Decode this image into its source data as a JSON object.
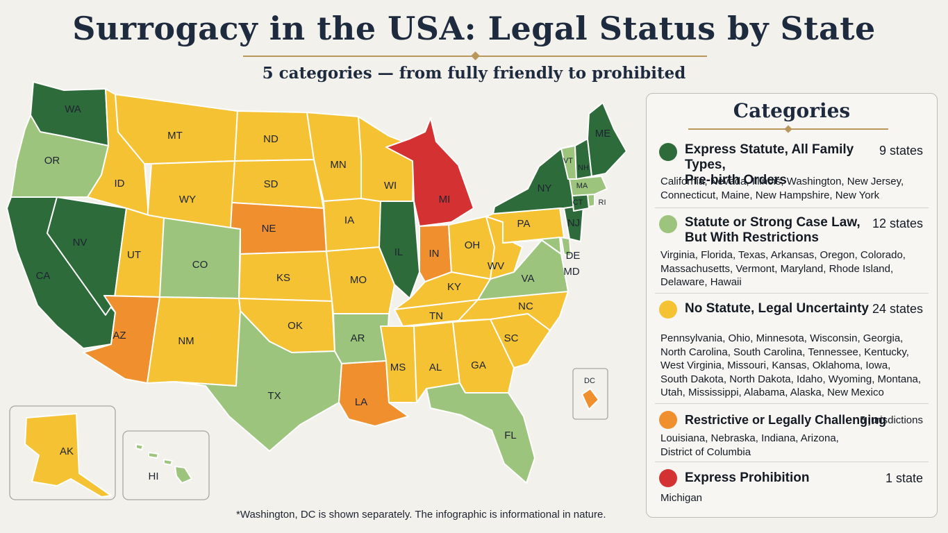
{
  "title": "Surrogacy in the USA: Legal Status by State",
  "subtitle": "5 categories — from fully friendly to prohibited",
  "footnote": "*Washington, DC is shown separately. The infographic is informational in nature.",
  "colors": {
    "express_statute": "#2e6b3a",
    "strong_case_law": "#9cc47c",
    "uncertainty": "#f4c233",
    "restrictive": "#ef8f2e",
    "prohibition": "#d43232"
  },
  "legend": {
    "title": "Categories",
    "categories": [
      {
        "name_line1": "Express Statute, All Family Types,",
        "name_line2": "Pre-birth Orders",
        "count": "9 states",
        "list_line1": "California, Nevada, Illinois, Washington, New Jersey,",
        "list_line2": "Connecticut, Maine, New Hampshire, New York"
      },
      {
        "name_line1": "Statute or Strong Case Law,",
        "name_line2": "But With Restrictions",
        "count": "12 states",
        "list_line1": "Virginia, Florida, Texas, Arkansas, Oregon, Colorado,",
        "list_line2": "Massachusetts, Vermont, Maryland, Rhode Island,",
        "list_line3": "Delaware, Hawaii"
      },
      {
        "name_line1": "No Statute, Legal Uncertainty",
        "count": "24 states",
        "list_line1": "Pennsylvania, Ohio, Minnesota, Wisconsin, Georgia,",
        "list_line2": "North Carolina, South Carolina, Tennessee, Kentucky,",
        "list_line3": "West Virginia, Missouri, Kansas, Oklahoma, Iowa,",
        "list_line4": "South Dakota, North Dakota, Idaho, Wyoming, Montana,",
        "list_line5": "Utah, Mississippi, Alabama, Alaska, New Mexico"
      },
      {
        "name_line1": "Restrictive or Legally Challenging",
        "count": "5 jurisdictions",
        "list_line1": "Louisiana, Nebraska, Indiana, Arizona,",
        "list_line2": "District of Columbia"
      },
      {
        "name_line1": "Express Prohibition",
        "count": "1 state",
        "list_line1": "Michigan"
      }
    ]
  },
  "map": {
    "states": [
      {
        "code": "WA",
        "category": "express_statute"
      },
      {
        "code": "OR",
        "category": "strong_case_law"
      },
      {
        "code": "CA",
        "category": "express_statute"
      },
      {
        "code": "NV",
        "category": "express_statute"
      },
      {
        "code": "ID",
        "category": "uncertainty"
      },
      {
        "code": "MT",
        "category": "uncertainty"
      },
      {
        "code": "WY",
        "category": "uncertainty"
      },
      {
        "code": "UT",
        "category": "uncertainty"
      },
      {
        "code": "AZ",
        "category": "restrictive"
      },
      {
        "code": "CO",
        "category": "strong_case_law"
      },
      {
        "code": "NM",
        "category": "uncertainty"
      },
      {
        "code": "ND",
        "category": "uncertainty"
      },
      {
        "code": "SD",
        "category": "uncertainty"
      },
      {
        "code": "NE",
        "category": "restrictive"
      },
      {
        "code": "KS",
        "category": "uncertainty"
      },
      {
        "code": "OK",
        "category": "uncertainty"
      },
      {
        "code": "TX",
        "category": "strong_case_law"
      },
      {
        "code": "MN",
        "category": "uncertainty"
      },
      {
        "code": "IA",
        "category": "uncertainty"
      },
      {
        "code": "MO",
        "category": "uncertainty"
      },
      {
        "code": "AR",
        "category": "strong_case_law"
      },
      {
        "code": "LA",
        "category": "restrictive"
      },
      {
        "code": "WI",
        "category": "uncertainty"
      },
      {
        "code": "IL",
        "category": "express_statute"
      },
      {
        "code": "MI",
        "category": "prohibition"
      },
      {
        "code": "IN",
        "category": "restrictive"
      },
      {
        "code": "OH",
        "category": "uncertainty"
      },
      {
        "code": "KY",
        "category": "uncertainty"
      },
      {
        "code": "TN",
        "category": "uncertainty"
      },
      {
        "code": "MS",
        "category": "uncertainty"
      },
      {
        "code": "AL",
        "category": "uncertainty"
      },
      {
        "code": "GA",
        "category": "uncertainty"
      },
      {
        "code": "FL",
        "category": "strong_case_law"
      },
      {
        "code": "SC",
        "category": "uncertainty"
      },
      {
        "code": "NC",
        "category": "uncertainty"
      },
      {
        "code": "VA",
        "category": "strong_case_law"
      },
      {
        "code": "WV",
        "category": "uncertainty"
      },
      {
        "code": "PA",
        "category": "uncertainty"
      },
      {
        "code": "NY",
        "category": "express_statute"
      },
      {
        "code": "NJ",
        "category": "express_statute"
      },
      {
        "code": "DE",
        "category": "strong_case_law"
      },
      {
        "code": "MD",
        "category": "strong_case_law"
      },
      {
        "code": "CT",
        "category": "express_statute"
      },
      {
        "code": "RI",
        "category": "strong_case_law"
      },
      {
        "code": "MA",
        "category": "strong_case_law"
      },
      {
        "code": "VT",
        "category": "strong_case_law"
      },
      {
        "code": "NH",
        "category": "express_statute"
      },
      {
        "code": "ME",
        "category": "express_statute"
      },
      {
        "code": "AK",
        "category": "uncertainty"
      },
      {
        "code": "HI",
        "category": "strong_case_law"
      },
      {
        "code": "DC",
        "category": "restrictive"
      }
    ]
  }
}
